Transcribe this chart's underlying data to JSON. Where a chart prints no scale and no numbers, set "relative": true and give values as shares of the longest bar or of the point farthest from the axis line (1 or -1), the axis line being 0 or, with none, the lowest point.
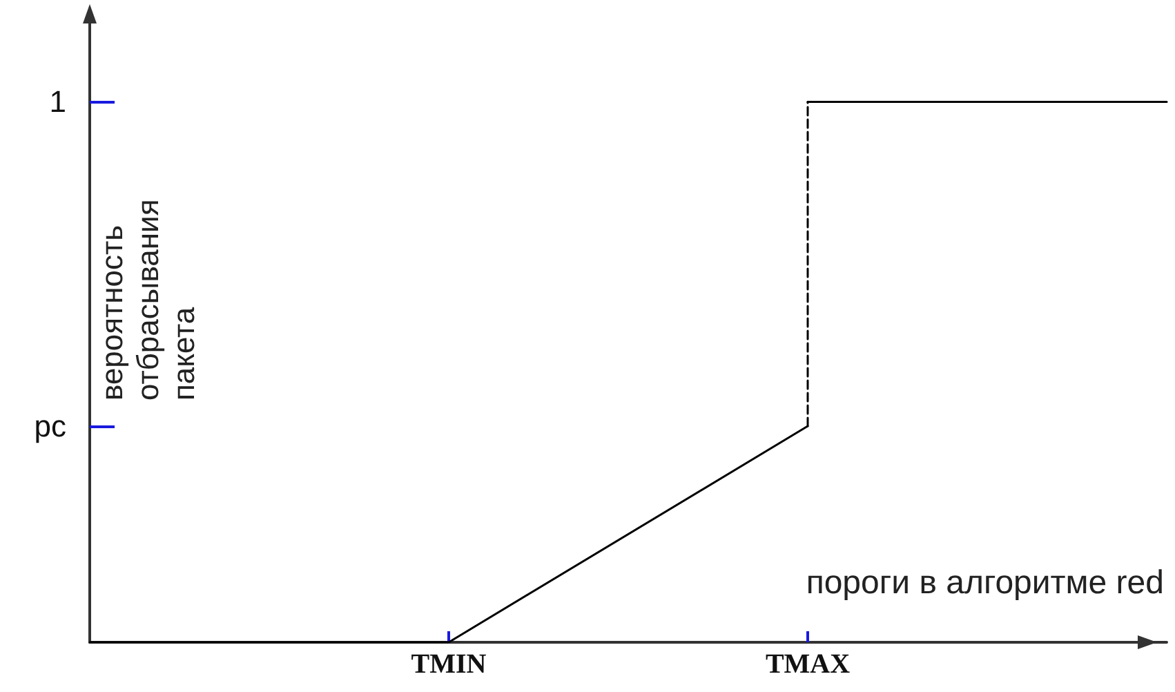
{
  "chart_data": {
    "type": "line",
    "relative": true,
    "xlabel": "пороги в алгоритме red",
    "ylabel": "вероятность отбрасывания пакета",
    "categories": [
      null,
      "TMIN",
      "TMAX",
      null
    ],
    "annotations": [
      "1",
      "pc"
    ],
    "grid": false,
    "marker": "none",
    "series": [
      {
        "color": "#000000",
        "line_style": "solid",
        "values": [
          0,
          0,
          0.4,
          null
        ]
      },
      {
        "color": "#000000",
        "line_style": "dashed",
        "x": [
          "TMAX",
          "TMAX"
        ],
        "values": [
          0.4,
          1
        ]
      },
      {
        "color": "#000000",
        "line_style": "solid",
        "values": [
          null,
          null,
          1,
          1
        ]
      }
    ]
  }
}
